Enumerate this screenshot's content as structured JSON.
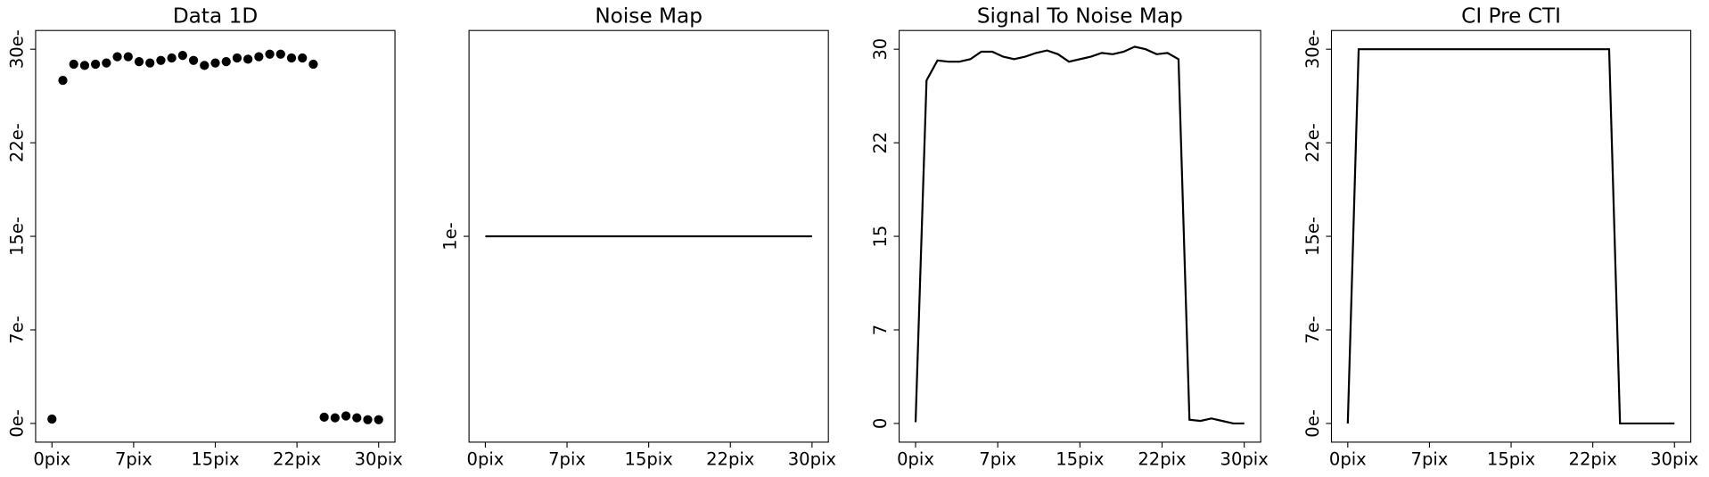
{
  "chart_data": [
    {
      "type": "scatter",
      "title": "Data 1D",
      "color": "#000000",
      "x": [
        0,
        1,
        2,
        3,
        4,
        5,
        6,
        7,
        8,
        9,
        10,
        11,
        12,
        13,
        14,
        15,
        16,
        17,
        18,
        19,
        20,
        21,
        22,
        23,
        24,
        25,
        26,
        27,
        28,
        29,
        30
      ],
      "values": [
        0.35,
        27.5,
        28.8,
        28.7,
        28.8,
        28.9,
        29.4,
        29.4,
        29.0,
        28.9,
        29.1,
        29.3,
        29.5,
        29.1,
        28.7,
        28.9,
        29.0,
        29.3,
        29.2,
        29.4,
        29.6,
        29.6,
        29.3,
        29.3,
        28.8,
        0.5,
        0.45,
        0.6,
        0.45,
        0.3,
        0.3
      ],
      "xlim": [
        -1.5,
        31.5
      ],
      "ylim": [
        -1.5,
        31.5
      ],
      "xticks": [
        {
          "value": 0,
          "label": "0pix"
        },
        {
          "value": 7.5,
          "label": "7pix"
        },
        {
          "value": 15,
          "label": "15pix"
        },
        {
          "value": 22.5,
          "label": "22pix"
        },
        {
          "value": 30,
          "label": "30pix"
        }
      ],
      "yticks": [
        {
          "value": 0,
          "label": "0e-"
        },
        {
          "value": 7.5,
          "label": "7e-"
        },
        {
          "value": 15,
          "label": "15e-"
        },
        {
          "value": 22.5,
          "label": "22e-"
        },
        {
          "value": 30,
          "label": "30e-"
        }
      ]
    },
    {
      "type": "line",
      "title": "Noise Map",
      "color": "#000000",
      "x": [
        0,
        1,
        2,
        3,
        4,
        5,
        6,
        7,
        8,
        9,
        10,
        11,
        12,
        13,
        14,
        15,
        16,
        17,
        18,
        19,
        20,
        21,
        22,
        23,
        24,
        25,
        26,
        27,
        28,
        29,
        30
      ],
      "values": [
        1,
        1,
        1,
        1,
        1,
        1,
        1,
        1,
        1,
        1,
        1,
        1,
        1,
        1,
        1,
        1,
        1,
        1,
        1,
        1,
        1,
        1,
        1,
        1,
        1,
        1,
        1,
        1,
        1,
        1,
        1
      ],
      "xlim": [
        -1.5,
        31.5
      ],
      "ylim": [
        0.945,
        1.055
      ],
      "xticks": [
        {
          "value": 0,
          "label": "0pix"
        },
        {
          "value": 7.5,
          "label": "7pix"
        },
        {
          "value": 15,
          "label": "15pix"
        },
        {
          "value": 22.5,
          "label": "22pix"
        },
        {
          "value": 30,
          "label": "30pix"
        }
      ],
      "yticks": [
        {
          "value": 1,
          "label": "1e-"
        }
      ]
    },
    {
      "type": "line",
      "title": "Signal To Noise Map",
      "color": "#000000",
      "x": [
        0,
        1,
        2,
        3,
        4,
        5,
        6,
        7,
        8,
        9,
        10,
        11,
        12,
        13,
        14,
        15,
        16,
        17,
        18,
        19,
        20,
        21,
        22,
        23,
        24,
        25,
        26,
        27,
        28,
        29,
        30
      ],
      "values": [
        0.1,
        27.5,
        29.1,
        29.0,
        29.0,
        29.2,
        29.8,
        29.8,
        29.4,
        29.2,
        29.4,
        29.7,
        29.9,
        29.6,
        29.0,
        29.2,
        29.4,
        29.7,
        29.6,
        29.8,
        30.2,
        30.0,
        29.6,
        29.7,
        29.2,
        0.3,
        0.2,
        0.4,
        0.2,
        0.0,
        0.0
      ],
      "xlim": [
        -1.5,
        31.5
      ],
      "ylim": [
        -1.5,
        31.5
      ],
      "xticks": [
        {
          "value": 0,
          "label": "0pix"
        },
        {
          "value": 7.5,
          "label": "7pix"
        },
        {
          "value": 15,
          "label": "15pix"
        },
        {
          "value": 22.5,
          "label": "22pix"
        },
        {
          "value": 30,
          "label": "30pix"
        }
      ],
      "yticks": [
        0,
        {
          "value": 7.5,
          "label": "7"
        },
        15,
        {
          "value": 22.5,
          "label": "22"
        },
        30
      ]
    },
    {
      "type": "line",
      "title": "CI Pre CTI",
      "color": "#000000",
      "x": [
        0,
        1,
        2,
        3,
        4,
        5,
        6,
        7,
        8,
        9,
        10,
        11,
        12,
        13,
        14,
        15,
        16,
        17,
        18,
        19,
        20,
        21,
        22,
        23,
        24,
        25,
        26,
        27,
        28,
        29,
        30
      ],
      "values": [
        0,
        30,
        30,
        30,
        30,
        30,
        30,
        30,
        30,
        30,
        30,
        30,
        30,
        30,
        30,
        30,
        30,
        30,
        30,
        30,
        30,
        30,
        30,
        30,
        30,
        0,
        0,
        0,
        0,
        0,
        0
      ],
      "xlim": [
        -1.5,
        31.5
      ],
      "ylim": [
        -1.5,
        31.5
      ],
      "xticks": [
        {
          "value": 0,
          "label": "0pix"
        },
        {
          "value": 7.5,
          "label": "7pix"
        },
        {
          "value": 15,
          "label": "15pix"
        },
        {
          "value": 22.5,
          "label": "22pix"
        },
        {
          "value": 30,
          "label": "30pix"
        }
      ],
      "yticks": [
        {
          "value": 0,
          "label": "0e-"
        },
        {
          "value": 7.5,
          "label": "7e-"
        },
        {
          "value": 15,
          "label": "15e-"
        },
        {
          "value": 22.5,
          "label": "22e-"
        },
        {
          "value": 30,
          "label": "30e-"
        }
      ]
    }
  ]
}
